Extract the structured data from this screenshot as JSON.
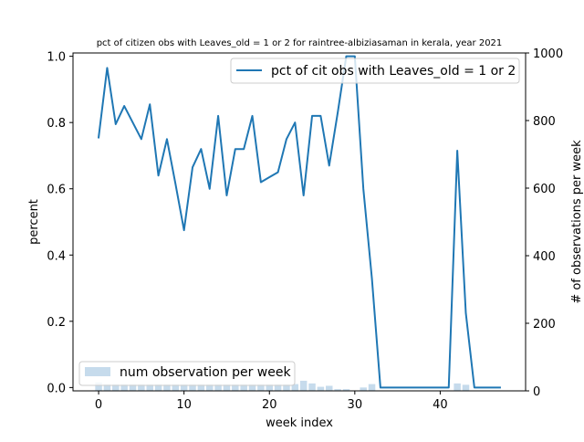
{
  "chart_data": {
    "type": "line+bar",
    "title": "pct of citizen obs with Leaves_old = 1 or 2 for raintree-albiziasaman in kerala, year 2021",
    "xlabel": "week index",
    "ylabel_left": "percent",
    "ylabel_right": "# of observations per week",
    "xlim": [
      -3,
      50
    ],
    "ylim_left": [
      -0.01,
      1.01
    ],
    "ylim_right": [
      0,
      1000
    ],
    "xticks": [
      0,
      10,
      20,
      30,
      40
    ],
    "yticks_left": [
      0.0,
      0.2,
      0.4,
      0.6,
      0.8,
      1.0
    ],
    "yticks_left_labels": [
      "0.0",
      "0.2",
      "0.4",
      "0.6",
      "0.8",
      "1.0"
    ],
    "yticks_right": [
      0,
      200,
      400,
      600,
      800,
      1000
    ],
    "grid": false,
    "line_series": {
      "name": "pct of cit obs with Leaves_old = 1 or 2",
      "color": "#1f77b4",
      "x": [
        0,
        1,
        2,
        3,
        4,
        5,
        6,
        7,
        8,
        9,
        10,
        11,
        12,
        13,
        14,
        15,
        16,
        17,
        18,
        19,
        20,
        21,
        22,
        23,
        24,
        25,
        26,
        27,
        28,
        29,
        30,
        31,
        32,
        33,
        34,
        35,
        36,
        37,
        38,
        39,
        40,
        41,
        42,
        43,
        44,
        45,
        46,
        47
      ],
      "y": [
        0.755,
        0.965,
        0.795,
        0.85,
        0.8,
        0.75,
        0.855,
        0.64,
        0.75,
        0.615,
        0.475,
        0.665,
        0.72,
        0.6,
        0.82,
        0.58,
        0.72,
        0.72,
        0.82,
        0.62,
        0.635,
        0.65,
        0.75,
        0.8,
        0.58,
        0.82,
        0.82,
        0.67,
        0.83,
        1.0,
        1.0,
        0.6,
        0.33,
        0.0,
        0.0,
        0.0,
        0.0,
        0.0,
        0.0,
        0.0,
        0.0,
        0.0,
        0.715,
        0.225,
        0.0,
        0.0,
        0.0,
        0.0
      ]
    },
    "bar_series": {
      "name": "num observation per week",
      "color": "#c6dbec",
      "x": [
        0,
        1,
        2,
        3,
        4,
        5,
        6,
        7,
        8,
        9,
        10,
        11,
        12,
        13,
        14,
        15,
        16,
        17,
        18,
        19,
        20,
        21,
        22,
        23,
        24,
        25,
        26,
        27,
        28,
        29,
        30,
        31,
        32,
        33,
        34,
        35,
        36,
        37,
        38,
        39,
        40,
        41,
        42,
        43,
        44,
        45,
        46,
        47
      ],
      "values": [
        25,
        20,
        20,
        20,
        20,
        20,
        20,
        20,
        20,
        20,
        20,
        20,
        20,
        20,
        20,
        20,
        20,
        20,
        20,
        20,
        20,
        20,
        20,
        20,
        30,
        22,
        12,
        15,
        5,
        5,
        0,
        10,
        20,
        0,
        0,
        0,
        0,
        0,
        0,
        0,
        0,
        0,
        22,
        18,
        0,
        0,
        0,
        0
      ]
    },
    "legend_line_position": "upper right",
    "legend_bar_position": "lower left"
  }
}
